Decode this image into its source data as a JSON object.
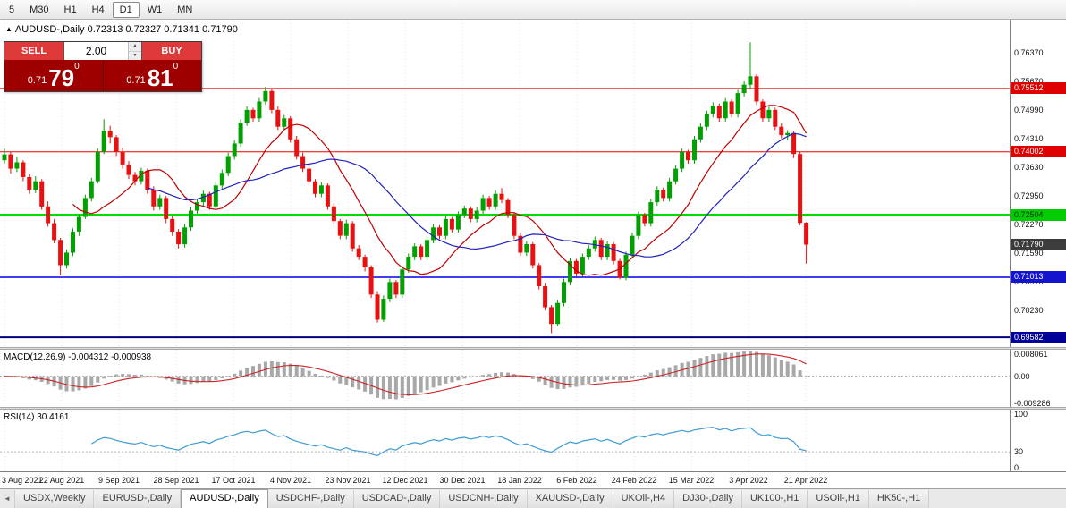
{
  "toolbar": {
    "timeframes": [
      {
        "label": "5",
        "active": false
      },
      {
        "label": "M30",
        "active": false
      },
      {
        "label": "H1",
        "active": false
      },
      {
        "label": "H4",
        "active": false
      },
      {
        "label": "D1",
        "active": true
      },
      {
        "label": "W1",
        "active": false
      },
      {
        "label": "MN",
        "active": false
      }
    ]
  },
  "header": {
    "collapse_icon": "▲",
    "title": "AUDUSD-,Daily",
    "ohlc": "0.72313 0.72327 0.71341 0.71790"
  },
  "trade_panel": {
    "sell_label": "SELL",
    "buy_label": "BUY",
    "lot_value": "2.00",
    "spin_up_icon": "▲",
    "spin_down_icon": "▼",
    "sell_price": {
      "small": "0.71",
      "big": "79",
      "sup": "0"
    },
    "buy_price": {
      "small": "0.71",
      "big": "81",
      "sup": "0"
    },
    "colors": {
      "button_bg": "#de3a3a",
      "price_bg": "#9e0000"
    }
  },
  "price_axis": {
    "ticks": [
      "0.76370",
      "0.75670",
      "0.74990",
      "0.74310",
      "0.73630",
      "0.72950",
      "0.72270",
      "0.71590",
      "0.70910",
      "0.70230",
      "0.69550"
    ],
    "badges": [
      {
        "value": "0.75512",
        "bg": "#df0000",
        "fg": "#ffffff"
      },
      {
        "value": "0.74002",
        "bg": "#df0000",
        "fg": "#ffffff"
      },
      {
        "value": "0.72504",
        "bg": "#00cc00",
        "fg": "#002900"
      },
      {
        "value": "0.71790",
        "bg": "#3c3c3c",
        "fg": "#ffffff"
      },
      {
        "value": "0.71013",
        "bg": "#1414cc",
        "fg": "#ffffff"
      },
      {
        "value": "0.69582",
        "bg": "#000099",
        "fg": "#ffffff"
      }
    ]
  },
  "hlines": [
    {
      "price": 0.75512,
      "color": "#ee0000",
      "w": 1
    },
    {
      "price": 0.74002,
      "color": "#ee0000",
      "w": 1
    },
    {
      "price": 0.72504,
      "color": "#00dd00",
      "w": 2
    },
    {
      "price": 0.71013,
      "color": "#0000ee",
      "w": 1.5
    },
    {
      "price": 0.69582,
      "color": "#000080",
      "w": 2
    }
  ],
  "macd_panel": {
    "label": "MACD(12,26,9)",
    "values": "-0.004312 -0.000938",
    "max": 0.008061,
    "min": -0.009286,
    "axis": [
      {
        "t": "0.008061",
        "v": 0.008061
      },
      {
        "t": "0.00",
        "v": 0
      },
      {
        "t": "-0.009286",
        "v": -0.009286
      }
    ]
  },
  "rsi_panel": {
    "label": "RSI(14)",
    "value": "30.4161",
    "period": 14,
    "level": 30,
    "axis": [
      {
        "t": "100",
        "v": 100
      },
      {
        "t": "30",
        "v": 30
      },
      {
        "t": "0",
        "v": 0
      }
    ]
  },
  "dates": [
    "3 Aug 2021",
    "22 Aug 2021",
    "9 Sep 2021",
    "28 Sep 2021",
    "17 Oct 2021",
    "4 Nov 2021",
    "23 Nov 2021",
    "12 Dec 2021",
    "30 Dec 2021",
    "18 Jan 2022",
    "6 Feb 2022",
    "24 Feb 2022",
    "15 Mar 2022",
    "3 Apr 2022",
    "21 Apr 2022"
  ],
  "tabs": {
    "scroll_left_icon": "◄",
    "items": [
      {
        "label": "USDX,Weekly",
        "active": false
      },
      {
        "label": "EURUSD-,Daily",
        "active": false
      },
      {
        "label": "AUDUSD-,Daily",
        "active": true
      },
      {
        "label": "USDCHF-,Daily",
        "active": false
      },
      {
        "label": "USDCAD-,Daily",
        "active": false
      },
      {
        "label": "USDCNH-,Daily",
        "active": false
      },
      {
        "label": "XAUUSD-,Daily",
        "active": false
      },
      {
        "label": "UKOil-,H4",
        "active": false
      },
      {
        "label": "DJ30-,Daily",
        "active": false
      },
      {
        "label": "UK100-,H1",
        "active": false
      },
      {
        "label": "USOil-,H1",
        "active": false
      },
      {
        "label": "HK50-,H1",
        "active": false
      }
    ]
  },
  "chart_data": {
    "type": "candlestick",
    "symbol": "AUDUSD-",
    "timeframe": "Daily",
    "title": "AUDUSD-,Daily",
    "ylim": [
      0.6935,
      0.7715
    ],
    "x_start": 5,
    "x_step": 6.95,
    "grid_step": 64,
    "ma_fast_period": 12,
    "ma_slow_period": 24,
    "colors": {
      "up": "#00a000",
      "down": "#e81010",
      "ma_fast": "#c00000",
      "ma_slow": "#2020c0",
      "grid": "#e0e0e0",
      "macd_hist": "#a8a8a8",
      "macd_signal": "#cc2222",
      "rsi": "#3d9bd5"
    },
    "candles": [
      [
        0.738,
        0.7408,
        0.7372,
        0.7394
      ],
      [
        0.7394,
        0.74,
        0.7348,
        0.736
      ],
      [
        0.736,
        0.7388,
        0.7352,
        0.7375
      ],
      [
        0.7375,
        0.738,
        0.733,
        0.734
      ],
      [
        0.734,
        0.7348,
        0.73,
        0.731
      ],
      [
        0.731,
        0.7342,
        0.7302,
        0.733
      ],
      [
        0.733,
        0.7335,
        0.7262,
        0.727
      ],
      [
        0.727,
        0.7282,
        0.7222,
        0.723
      ],
      [
        0.723,
        0.724,
        0.7182,
        0.719
      ],
      [
        0.719,
        0.7195,
        0.7106,
        0.713
      ],
      [
        0.713,
        0.7168,
        0.7122,
        0.716
      ],
      [
        0.716,
        0.7218,
        0.7152,
        0.721
      ],
      [
        0.721,
        0.7252,
        0.72,
        0.7245
      ],
      [
        0.7245,
        0.7298,
        0.724,
        0.729
      ],
      [
        0.729,
        0.7338,
        0.7282,
        0.733
      ],
      [
        0.733,
        0.7408,
        0.7325,
        0.74
      ],
      [
        0.74,
        0.7478,
        0.7395,
        0.745
      ],
      [
        0.745,
        0.7462,
        0.742,
        0.7435
      ],
      [
        0.7435,
        0.744,
        0.739,
        0.74
      ],
      [
        0.74,
        0.741,
        0.736,
        0.737
      ],
      [
        0.737,
        0.7378,
        0.7335,
        0.7345
      ],
      [
        0.7345,
        0.7352,
        0.732,
        0.733
      ],
      [
        0.733,
        0.7362,
        0.7322,
        0.7355
      ],
      [
        0.7355,
        0.736,
        0.73,
        0.731
      ],
      [
        0.731,
        0.7318,
        0.726,
        0.727
      ],
      [
        0.727,
        0.7298,
        0.7262,
        0.729
      ],
      [
        0.729,
        0.7295,
        0.723,
        0.724
      ],
      [
        0.724,
        0.7248,
        0.72,
        0.721
      ],
      [
        0.721,
        0.7216,
        0.717,
        0.718
      ],
      [
        0.718,
        0.7228,
        0.7172,
        0.722
      ],
      [
        0.722,
        0.7268,
        0.7212,
        0.726
      ],
      [
        0.726,
        0.7288,
        0.7252,
        0.728
      ],
      [
        0.728,
        0.7308,
        0.727,
        0.73
      ],
      [
        0.73,
        0.7305,
        0.7262,
        0.727
      ],
      [
        0.727,
        0.7328,
        0.7262,
        0.732
      ],
      [
        0.732,
        0.7358,
        0.7312,
        0.735
      ],
      [
        0.735,
        0.7398,
        0.7342,
        0.739
      ],
      [
        0.739,
        0.7428,
        0.7382,
        0.742
      ],
      [
        0.742,
        0.7478,
        0.7412,
        0.747
      ],
      [
        0.747,
        0.7508,
        0.7462,
        0.75
      ],
      [
        0.75,
        0.7505,
        0.7472,
        0.748
      ],
      [
        0.748,
        0.7528,
        0.7472,
        0.752
      ],
      [
        0.752,
        0.7555,
        0.7512,
        0.7545
      ],
      [
        0.7545,
        0.755,
        0.7492,
        0.75
      ],
      [
        0.75,
        0.7508,
        0.7452,
        0.746
      ],
      [
        0.746,
        0.7488,
        0.7452,
        0.748
      ],
      [
        0.748,
        0.7485,
        0.7422,
        0.743
      ],
      [
        0.743,
        0.7438,
        0.7382,
        0.739
      ],
      [
        0.739,
        0.7398,
        0.7352,
        0.736
      ],
      [
        0.736,
        0.7368,
        0.7322,
        0.733
      ],
      [
        0.733,
        0.7335,
        0.7292,
        0.73
      ],
      [
        0.73,
        0.7328,
        0.7292,
        0.732
      ],
      [
        0.732,
        0.7325,
        0.7262,
        0.727
      ],
      [
        0.727,
        0.7278,
        0.7228,
        0.7235
      ],
      [
        0.7235,
        0.724,
        0.7192,
        0.72
      ],
      [
        0.72,
        0.7238,
        0.7192,
        0.723
      ],
      [
        0.723,
        0.7235,
        0.7162,
        0.717
      ],
      [
        0.717,
        0.7178,
        0.7142,
        0.715
      ],
      [
        0.715,
        0.7155,
        0.7115,
        0.7125
      ],
      [
        0.7125,
        0.713,
        0.7052,
        0.706
      ],
      [
        0.706,
        0.7068,
        0.6993,
        0.7
      ],
      [
        0.7,
        0.7058,
        0.6995,
        0.705
      ],
      [
        0.705,
        0.7098,
        0.7042,
        0.709
      ],
      [
        0.709,
        0.7095,
        0.7052,
        0.706
      ],
      [
        0.706,
        0.7128,
        0.7052,
        0.712
      ],
      [
        0.712,
        0.7158,
        0.7112,
        0.715
      ],
      [
        0.715,
        0.7182,
        0.7142,
        0.7175
      ],
      [
        0.7175,
        0.718,
        0.7142,
        0.715
      ],
      [
        0.715,
        0.7198,
        0.7142,
        0.719
      ],
      [
        0.719,
        0.7228,
        0.7182,
        0.722
      ],
      [
        0.722,
        0.7225,
        0.7192,
        0.72
      ],
      [
        0.72,
        0.7248,
        0.7192,
        0.724
      ],
      [
        0.724,
        0.7245,
        0.7208,
        0.7215
      ],
      [
        0.7215,
        0.7258,
        0.7208,
        0.725
      ],
      [
        0.725,
        0.7272,
        0.7242,
        0.7265
      ],
      [
        0.7265,
        0.727,
        0.7232,
        0.724
      ],
      [
        0.724,
        0.7268,
        0.7232,
        0.726
      ],
      [
        0.726,
        0.7298,
        0.7252,
        0.729
      ],
      [
        0.729,
        0.7295,
        0.7262,
        0.727
      ],
      [
        0.727,
        0.7308,
        0.7262,
        0.73
      ],
      [
        0.73,
        0.7314,
        0.7278,
        0.7285
      ],
      [
        0.7285,
        0.729,
        0.7242,
        0.725
      ],
      [
        0.725,
        0.7255,
        0.7192,
        0.72
      ],
      [
        0.72,
        0.7208,
        0.7152,
        0.716
      ],
      [
        0.716,
        0.7188,
        0.7152,
        0.718
      ],
      [
        0.718,
        0.7185,
        0.7122,
        0.713
      ],
      [
        0.713,
        0.7135,
        0.7072,
        0.708
      ],
      [
        0.708,
        0.7088,
        0.7022,
        0.703
      ],
      [
        0.703,
        0.7035,
        0.6968,
        0.699
      ],
      [
        0.699,
        0.7048,
        0.6985,
        0.704
      ],
      [
        0.704,
        0.7098,
        0.7032,
        0.709
      ],
      [
        0.709,
        0.7148,
        0.7082,
        0.714
      ],
      [
        0.714,
        0.7145,
        0.7102,
        0.711
      ],
      [
        0.711,
        0.7158,
        0.7102,
        0.715
      ],
      [
        0.715,
        0.7178,
        0.7142,
        0.717
      ],
      [
        0.717,
        0.7198,
        0.7162,
        0.719
      ],
      [
        0.719,
        0.7195,
        0.7142,
        0.715
      ],
      [
        0.715,
        0.7188,
        0.7142,
        0.718
      ],
      [
        0.718,
        0.7185,
        0.7132,
        0.714
      ],
      [
        0.714,
        0.7145,
        0.7096,
        0.71
      ],
      [
        0.71,
        0.7162,
        0.7094,
        0.7155
      ],
      [
        0.7155,
        0.7208,
        0.7148,
        0.72
      ],
      [
        0.72,
        0.7258,
        0.7192,
        0.725
      ],
      [
        0.725,
        0.7255,
        0.7222,
        0.723
      ],
      [
        0.723,
        0.7288,
        0.7222,
        0.728
      ],
      [
        0.728,
        0.7318,
        0.7272,
        0.731
      ],
      [
        0.731,
        0.7315,
        0.7282,
        0.729
      ],
      [
        0.729,
        0.7338,
        0.7282,
        0.733
      ],
      [
        0.733,
        0.7368,
        0.7322,
        0.736
      ],
      [
        0.736,
        0.7408,
        0.7352,
        0.74
      ],
      [
        0.74,
        0.7405,
        0.7372,
        0.738
      ],
      [
        0.738,
        0.7438,
        0.7372,
        0.743
      ],
      [
        0.743,
        0.7468,
        0.7422,
        0.746
      ],
      [
        0.746,
        0.7498,
        0.7452,
        0.749
      ],
      [
        0.749,
        0.7518,
        0.7482,
        0.751
      ],
      [
        0.751,
        0.7515,
        0.7472,
        0.748
      ],
      [
        0.748,
        0.7528,
        0.7472,
        0.752
      ],
      [
        0.752,
        0.7525,
        0.7482,
        0.749
      ],
      [
        0.749,
        0.7548,
        0.7482,
        0.754
      ],
      [
        0.754,
        0.7568,
        0.7532,
        0.756
      ],
      [
        0.756,
        0.7661,
        0.7552,
        0.758
      ],
      [
        0.758,
        0.7585,
        0.7512,
        0.752
      ],
      [
        0.752,
        0.7525,
        0.7472,
        0.748
      ],
      [
        0.748,
        0.7508,
        0.7472,
        0.75
      ],
      [
        0.75,
        0.7505,
        0.7452,
        0.746
      ],
      [
        0.746,
        0.7468,
        0.7432,
        0.744
      ],
      [
        0.744,
        0.7452,
        0.7428,
        0.7445
      ],
      [
        0.7445,
        0.745,
        0.7385,
        0.7395
      ],
      [
        0.7395,
        0.74,
        0.7225,
        0.7231
      ],
      [
        0.72313,
        0.72327,
        0.71341,
        0.7179
      ]
    ]
  }
}
